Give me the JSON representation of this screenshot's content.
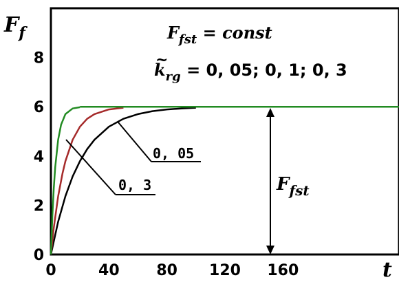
{
  "chart_data": {
    "type": "line",
    "xlim": [
      0,
      240
    ],
    "ylim": [
      0,
      10
    ],
    "x_ticks": [
      0,
      40,
      80,
      120,
      160
    ],
    "y_ticks": [
      0,
      2,
      4,
      6,
      8
    ],
    "x_tick_labels": [
      "0",
      "40",
      "80",
      "120",
      "160"
    ],
    "y_tick_labels": [
      "0",
      "2",
      "4",
      "6",
      "8"
    ],
    "ylabel": {
      "main": "F",
      "sub": "f"
    },
    "xlabel": "t",
    "annotation_line1": {
      "main": "F",
      "sub": "fst",
      "rest": " = const"
    },
    "annotation_line2": {
      "main": "k",
      "sub": "rg",
      "rest": " = 0, 05; 0, 1; 0, 3"
    },
    "label_005": "0, 05",
    "label_03": "0, 3",
    "arrow_label": {
      "main": "F",
      "sub": "fst",
      "value": 6
    },
    "series": [
      {
        "k": 0.05,
        "color": "#000000",
        "x": [
          0,
          5,
          10,
          15,
          20,
          25,
          30,
          40,
          50,
          60,
          70,
          80,
          90,
          100
        ],
        "y": [
          0,
          1.33,
          2.37,
          3.17,
          3.79,
          4.28,
          4.66,
          5.19,
          5.51,
          5.7,
          5.82,
          5.89,
          5.93,
          5.96
        ]
      },
      {
        "k": 0.1,
        "color": "#a52a2a",
        "x": [
          0,
          2,
          5,
          8,
          10,
          15,
          20,
          25,
          30,
          40,
          50
        ],
        "y": [
          0,
          1.09,
          2.36,
          3.3,
          3.79,
          4.66,
          5.19,
          5.51,
          5.7,
          5.89,
          5.96
        ]
      },
      {
        "k": 0.3,
        "color": "#228b22",
        "x": [
          0,
          1,
          2,
          3,
          5,
          7,
          10,
          15,
          20
        ],
        "y": [
          0,
          1.55,
          2.7,
          3.56,
          4.66,
          5.27,
          5.7,
          5.93,
          5.98
        ]
      },
      {
        "k": null,
        "color": "#228b22",
        "x": [
          20,
          240
        ],
        "y": [
          6,
          6
        ]
      }
    ]
  }
}
